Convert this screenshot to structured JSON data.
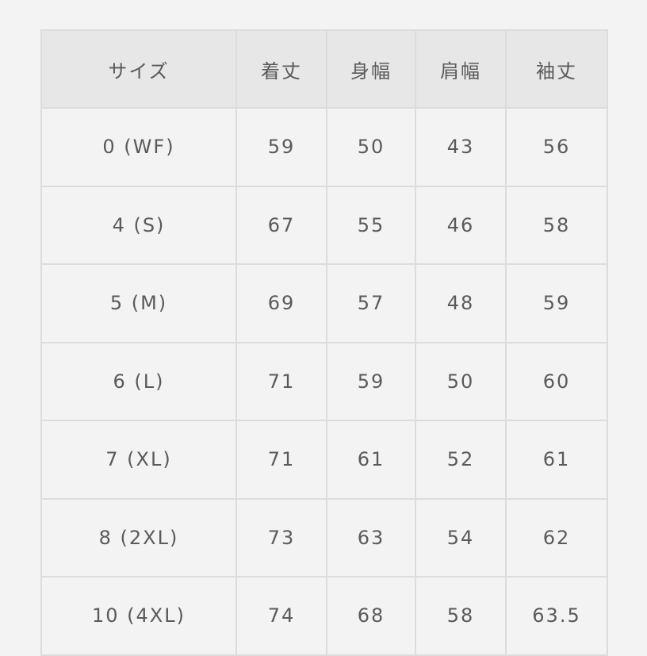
{
  "table": {
    "headers": [
      "サイズ",
      "着丈",
      "身幅",
      "肩幅",
      "袖丈"
    ],
    "rows": [
      [
        "0 (WF)",
        "59",
        "50",
        "43",
        "56"
      ],
      [
        "4 (S)",
        "67",
        "55",
        "46",
        "58"
      ],
      [
        "5 (M)",
        "69",
        "57",
        "48",
        "59"
      ],
      [
        "6 (L)",
        "71",
        "59",
        "50",
        "60"
      ],
      [
        "7 (XL)",
        "71",
        "61",
        "52",
        "61"
      ],
      [
        "8 (2XL)",
        "73",
        "63",
        "54",
        "62"
      ],
      [
        "10 (4XL)",
        "74",
        "68",
        "58",
        "63.5"
      ]
    ]
  }
}
